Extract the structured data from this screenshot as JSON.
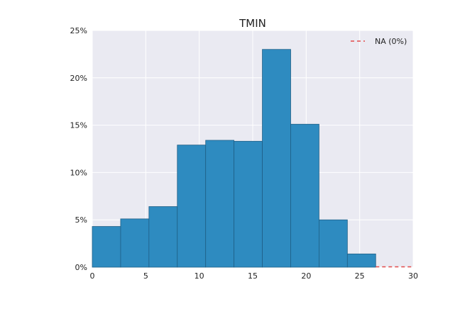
{
  "chart_data": {
    "type": "bar",
    "title": "TMIN",
    "xlabel": "",
    "ylabel": "",
    "xlim": [
      0,
      30
    ],
    "ylim": [
      0,
      25
    ],
    "x_ticks": [
      0,
      5,
      10,
      15,
      20,
      25,
      30
    ],
    "y_ticks": [
      {
        "value": 0,
        "label": "0%"
      },
      {
        "value": 5,
        "label": "5%"
      },
      {
        "value": 10,
        "label": "10%"
      },
      {
        "value": 15,
        "label": "15%"
      },
      {
        "value": 20,
        "label": "20%"
      },
      {
        "value": 25,
        "label": "25%"
      }
    ],
    "bins": [
      {
        "start": 0.0,
        "end": 2.65,
        "value": 4.3
      },
      {
        "start": 2.65,
        "end": 5.3,
        "value": 5.1
      },
      {
        "start": 5.3,
        "end": 7.95,
        "value": 6.4
      },
      {
        "start": 7.95,
        "end": 10.6,
        "value": 12.9
      },
      {
        "start": 10.6,
        "end": 13.25,
        "value": 13.4
      },
      {
        "start": 13.25,
        "end": 15.9,
        "value": 13.3
      },
      {
        "start": 15.9,
        "end": 18.55,
        "value": 23.0
      },
      {
        "start": 18.55,
        "end": 21.2,
        "value": 15.1
      },
      {
        "start": 21.2,
        "end": 23.85,
        "value": 5.0
      },
      {
        "start": 23.85,
        "end": 26.5,
        "value": 1.4
      }
    ],
    "na_line": {
      "label": "NA (0%)",
      "value": 0,
      "x_start": 26.5,
      "x_end": 30
    },
    "grid": true,
    "legend_position": "top-right",
    "colors": {
      "bar": "#2e8bc0",
      "bar_edge": "#1f5f86",
      "na_line": "#e24a4a",
      "plot_bg": "#eaeaf2",
      "grid": "#ffffff"
    }
  }
}
